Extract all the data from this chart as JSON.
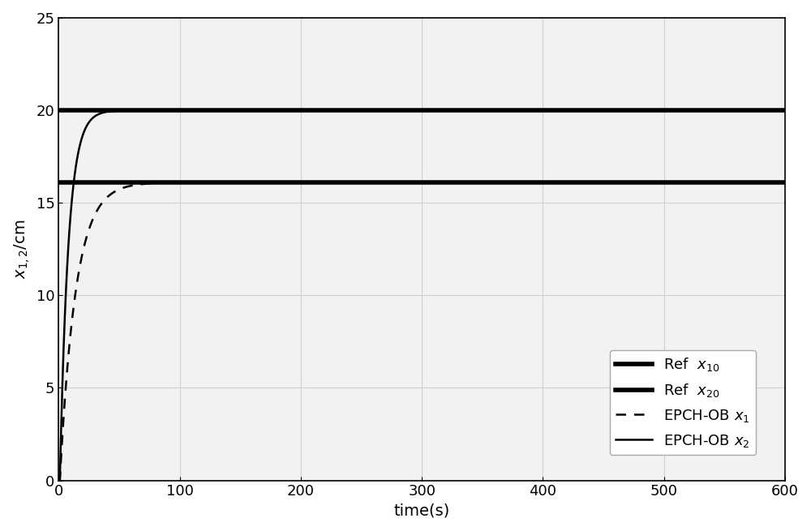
{
  "xlabel": "time(s)",
  "ylabel": "$x_{1,2}$/cm",
  "xlim": [
    0,
    600
  ],
  "ylim": [
    0,
    25
  ],
  "xticks": [
    0,
    100,
    200,
    300,
    400,
    500,
    600
  ],
  "yticks": [
    0,
    5,
    10,
    15,
    20,
    25
  ],
  "ref_x10": 20.0,
  "ref_x20": 16.1,
  "background_color": "#f2f2f2",
  "ref_x10_lw": 4.0,
  "ref_x20_lw": 4.0,
  "epch_x2_lw": 1.8,
  "epch_x1_lw": 1.8,
  "ref_color": "#000000",
  "epch_color": "#000000",
  "legend_fontsize": 13,
  "tau2": 7.0,
  "tau1": 13.0,
  "delay2": 1.0,
  "delay1": 1.0
}
